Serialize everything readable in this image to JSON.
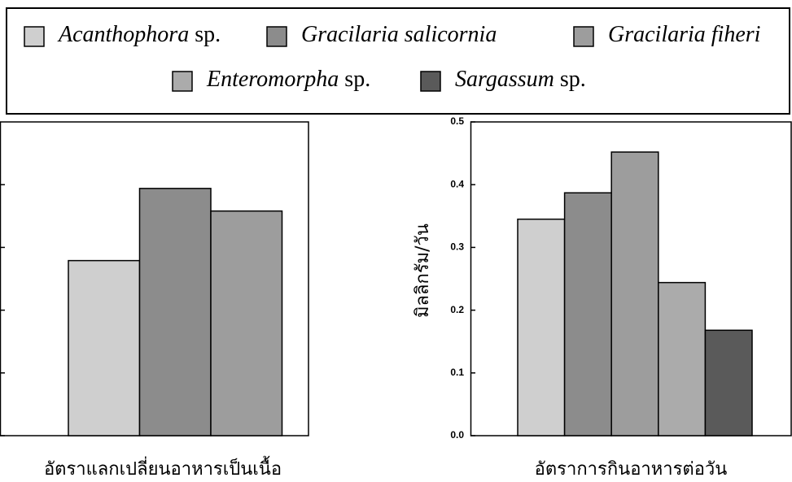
{
  "legend": {
    "entries": [
      {
        "name": "Acanthophora sp.",
        "color": "#cfcfcf"
      },
      {
        "name": "Gracilaria salicornia",
        "color": "#8c8c8c"
      },
      {
        "name": "Gracilaria fiheri",
        "color": "#9d9d9d"
      },
      {
        "name": "Enteromorpha sp.",
        "color": "#ababab"
      },
      {
        "name": "Sargassum sp.",
        "color": "#5a5a5a"
      }
    ]
  },
  "chart_data": [
    {
      "type": "bar",
      "caption": "อัตราแลกเปลี่ยนอาหารเป็นเนื้อ",
      "values": [
        2.79,
        3.94,
        3.58
      ],
      "ylim": [
        0,
        5
      ],
      "yticks": [
        0,
        1,
        2,
        3,
        4
      ],
      "tick_labels": false
    },
    {
      "type": "bar",
      "caption": "อัตราการกินอาหารต่อวัน",
      "ylabel": "มิลลิกรัม/วัน",
      "values": [
        0.345,
        0.387,
        0.452,
        0.244,
        0.168
      ],
      "ylim": [
        0,
        0.5
      ],
      "yticks": [
        {
          "value": 0,
          "label": "0.0"
        },
        0.1,
        0.2,
        0.3,
        0.4,
        0.5
      ],
      "tick_labels": true
    }
  ]
}
